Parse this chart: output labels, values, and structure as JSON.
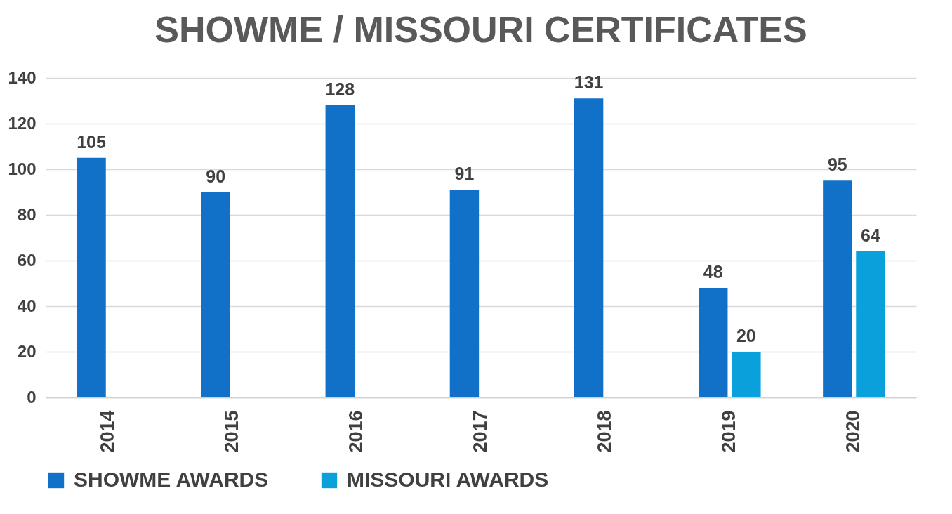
{
  "chart_data": {
    "type": "bar",
    "title": "SHOWME / MISSOURI CERTIFICATES",
    "categories": [
      "2014",
      "2015",
      "2016",
      "2017",
      "2018",
      "2019",
      "2020"
    ],
    "series": [
      {
        "name": "SHOWME AWARDS",
        "color": "#1170c8",
        "values": [
          105,
          90,
          128,
          91,
          131,
          48,
          95
        ]
      },
      {
        "name": "MISSOURI AWARDS",
        "color": "#0aa0dc",
        "values": [
          null,
          null,
          null,
          null,
          null,
          20,
          64
        ]
      }
    ],
    "ylim": [
      0,
      140
    ],
    "yticks": [
      0,
      20,
      40,
      60,
      80,
      100,
      120,
      140
    ],
    "grid": "y",
    "legend": "bottom",
    "data_labels": true
  }
}
